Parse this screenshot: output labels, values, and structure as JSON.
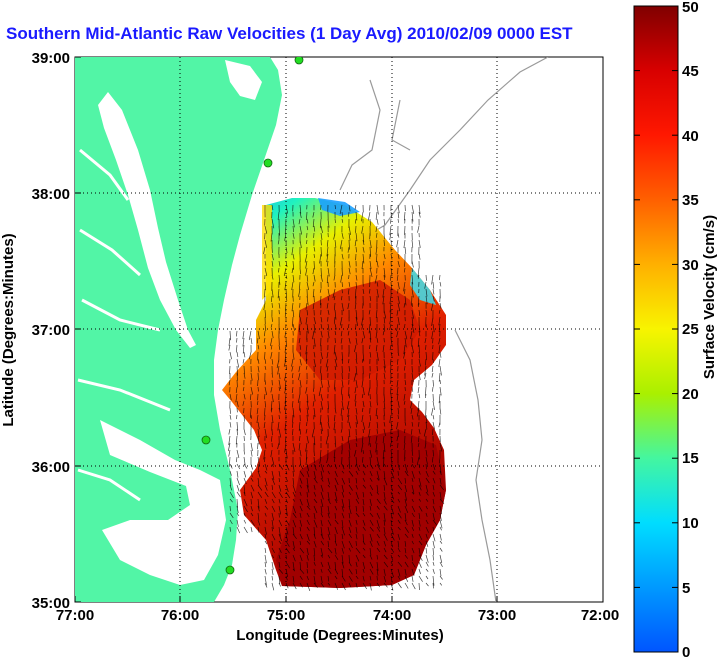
{
  "title": "Southern Mid-Atlantic Raw Velocities (1 Day Avg) 2010/02/09 0000 EST",
  "map": {
    "x_label": "Longitude (Degrees:Minutes)",
    "y_label": "Latitude (Degrees:Minutes)",
    "x_ticks": [
      "77:00",
      "76:00",
      "75:00",
      "74:00",
      "73:00",
      "72:00"
    ],
    "y_ticks": [
      "39:00",
      "38:00",
      "37:00",
      "36:00",
      "35:00"
    ],
    "grid": "dotted"
  },
  "colorbar": {
    "label": "Surface Velocity (cm/s)",
    "ticks": [
      "0",
      "5",
      "10",
      "15",
      "20",
      "25",
      "30",
      "35",
      "40",
      "45",
      "50"
    ]
  },
  "colors": {
    "land": "#52f5a6",
    "title": "#1a1aff",
    "coast_contour": "#9a9a9a",
    "stations": "#22dd22"
  }
}
